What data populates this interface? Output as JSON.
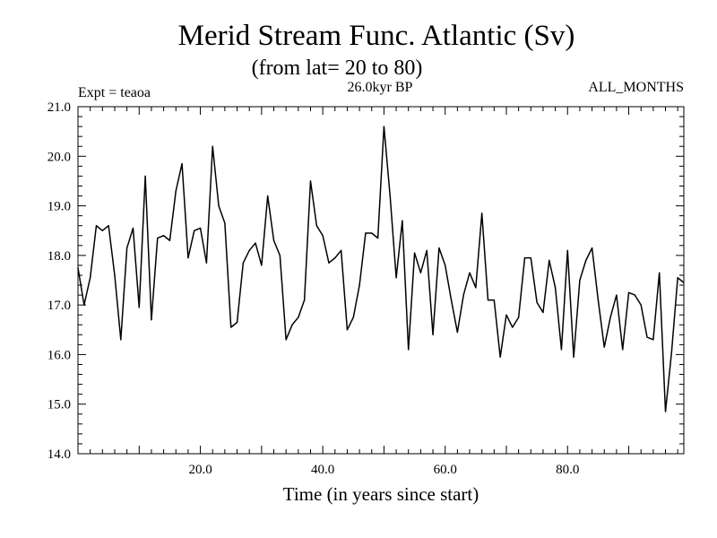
{
  "chart_data": {
    "type": "line",
    "title": "Merid Stream Func. Atlantic (Sv)",
    "subtitle": "(from lat= 20 to 80)",
    "experiment_label": "Expt = teaoa",
    "period_label": "26.0kyr BP",
    "months_label": "ALL_MONTHS",
    "xlabel": "Time (in years since start)",
    "ylabel": "",
    "xlim": [
      0,
      99
    ],
    "ylim": [
      14.0,
      21.0
    ],
    "x_ticks": [
      20,
      40,
      60,
      80
    ],
    "x_tick_labels": [
      "20.0",
      "40.0",
      "60.0",
      "80.0"
    ],
    "y_ticks": [
      14,
      15,
      16,
      17,
      18,
      19,
      20,
      21
    ],
    "y_tick_labels": [
      "14.0",
      "15.0",
      "16.0",
      "17.0",
      "18.0",
      "19.0",
      "20.0",
      "21.0"
    ],
    "grid": false,
    "series": [
      {
        "name": "Merid Stream Func. Atlantic",
        "color": "#000000",
        "x": [
          0,
          1,
          2,
          3,
          4,
          5,
          6,
          7,
          8,
          9,
          10,
          11,
          12,
          13,
          14,
          15,
          16,
          17,
          18,
          19,
          20,
          21,
          22,
          23,
          24,
          25,
          26,
          27,
          28,
          29,
          30,
          31,
          32,
          33,
          34,
          35,
          36,
          37,
          38,
          39,
          40,
          41,
          42,
          43,
          44,
          45,
          46,
          47,
          48,
          49,
          50,
          51,
          52,
          53,
          54,
          55,
          56,
          57,
          58,
          59,
          60,
          61,
          62,
          63,
          64,
          65,
          66,
          67,
          68,
          69,
          70,
          71,
          72,
          73,
          74,
          75,
          76,
          77,
          78,
          79,
          80,
          81,
          82,
          83,
          84,
          85,
          86,
          87,
          88,
          89,
          90,
          91,
          92,
          93,
          94,
          95,
          96,
          97,
          98,
          99
        ],
        "values": [
          17.75,
          17.0,
          17.55,
          18.6,
          18.5,
          18.6,
          17.6,
          16.3,
          18.15,
          18.55,
          16.95,
          19.6,
          16.7,
          18.35,
          18.4,
          18.3,
          19.3,
          19.85,
          17.95,
          18.5,
          18.55,
          17.85,
          20.2,
          19.0,
          18.65,
          16.55,
          16.65,
          17.85,
          18.1,
          18.25,
          17.8,
          19.2,
          18.3,
          18.0,
          16.3,
          16.6,
          16.75,
          17.1,
          19.5,
          18.6,
          18.4,
          17.85,
          17.95,
          18.1,
          16.5,
          16.75,
          17.4,
          18.45,
          18.45,
          18.35,
          20.6,
          19.2,
          17.55,
          18.7,
          16.1,
          18.05,
          17.65,
          18.1,
          16.4,
          18.15,
          17.8,
          17.1,
          16.45,
          17.2,
          17.65,
          17.35,
          18.85,
          17.1,
          17.1,
          15.95,
          16.8,
          16.55,
          16.75,
          17.95,
          17.95,
          17.05,
          16.85,
          17.9,
          17.35,
          16.1,
          18.1,
          15.95,
          17.5,
          17.9,
          18.15,
          17.1,
          16.15,
          16.75,
          17.2,
          16.1,
          17.25,
          17.2,
          17.0,
          16.35,
          16.3,
          17.65,
          14.85,
          16.05,
          17.55,
          17.45
        ]
      }
    ]
  }
}
